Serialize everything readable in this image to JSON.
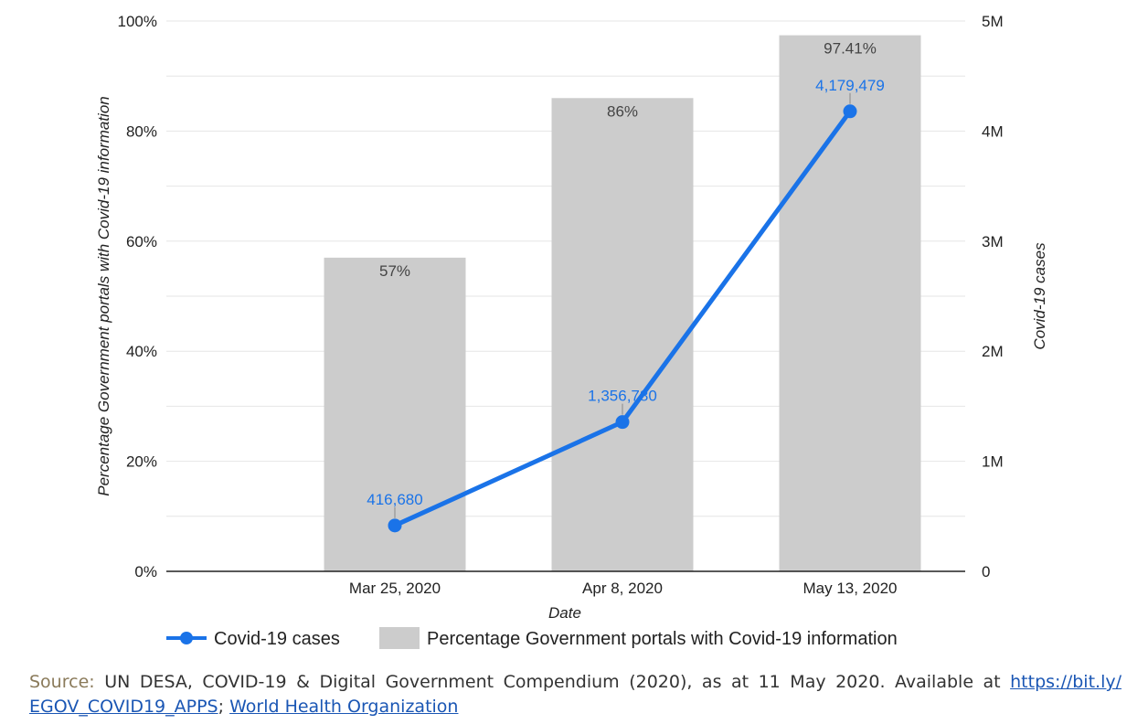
{
  "chart_data": {
    "type": "bar",
    "categories": [
      "Mar 25, 2020",
      "Apr 8, 2020",
      "May 13, 2020"
    ],
    "xlabel": "Date",
    "series": [
      {
        "name": "Percentage Government portals with Covid-19 information",
        "type": "bar",
        "axis": "left",
        "values": [
          57,
          86,
          97.41
        ],
        "labels": [
          "57%",
          "86%",
          "97.41%"
        ],
        "color": "#cccccc"
      },
      {
        "name": "Covid-19 cases",
        "type": "line",
        "axis": "right",
        "values": [
          416680,
          1356780,
          4179479
        ],
        "labels": [
          "416,680",
          "1,356,780",
          "4,179,479"
        ],
        "color": "#1a73e8"
      }
    ],
    "y_left": {
      "label": "Percentage Government portals with Covid-19 information",
      "ylim": [
        0,
        100
      ],
      "ticks": [
        0,
        20,
        40,
        60,
        80,
        100
      ],
      "tick_labels": [
        "0%",
        "20%",
        "40%",
        "60%",
        "80%",
        "100%"
      ]
    },
    "y_right": {
      "label": "Covid-19 cases",
      "ylim": [
        0,
        5000000
      ],
      "ticks": [
        0,
        1000000,
        2000000,
        3000000,
        4000000,
        5000000
      ],
      "tick_labels": [
        "0",
        "1M",
        "2M",
        "3M",
        "4M",
        "5M"
      ]
    },
    "grid": true,
    "legend_position": "bottom-left"
  },
  "source": {
    "label": "Source:",
    "text": " UN DESA, COVID-19 & Digital Government Compendium (2020), as at 11 May 2020. Available at ",
    "link_text": "https://bit.ly/ EGOV_COVID19_APPS",
    "link_text2": "World Health Organization",
    "separator": "; "
  }
}
